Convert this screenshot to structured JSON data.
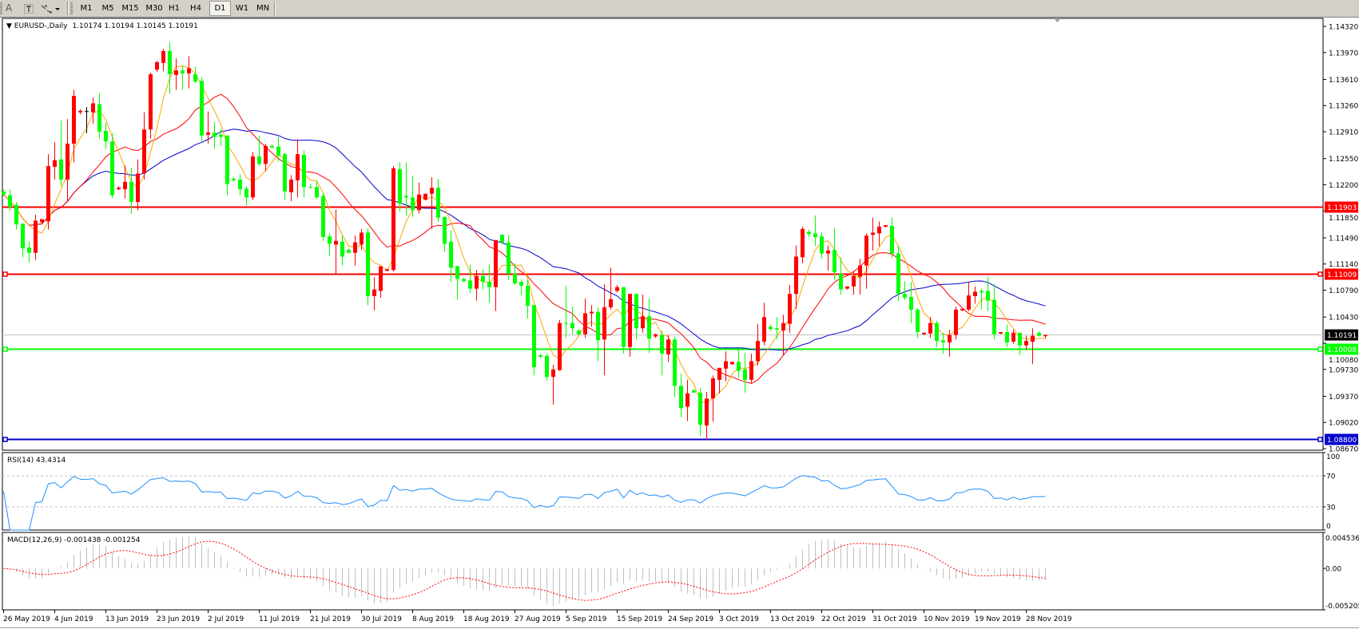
{
  "toolbar": {
    "tools": [
      {
        "label": "A",
        "icon": "text-label-icon"
      },
      {
        "label": "",
        "icon": "text-box-icon"
      },
      {
        "label": "",
        "icon": "arrows-icon"
      }
    ],
    "timeframes": [
      "M1",
      "M5",
      "M15",
      "M30",
      "H1",
      "H4",
      "D1",
      "W1",
      "MN"
    ],
    "active_timeframe": "D1"
  },
  "chart": {
    "symbol_label": "EURUSD-,Daily",
    "ohlc_text": "1.10174 1.10194 1.10145 1.10191",
    "price_ticks": [
      "1.14320",
      "1.13970",
      "1.13610",
      "1.13260",
      "1.12910",
      "1.12550",
      "1.12200",
      "1.11850",
      "1.11490",
      "1.11140",
      "1.10790",
      "1.10430",
      "1.10080",
      "1.09730",
      "1.09370",
      "1.09020",
      "1.08670"
    ],
    "hlines": [
      {
        "price": 1.11903,
        "label": "1.11903",
        "color": "#FF0000",
        "marker": false
      },
      {
        "price": 1.11009,
        "label": "1.11009",
        "color": "#FF0000",
        "marker": true
      },
      {
        "price": 1.10008,
        "label": "1.10008",
        "color": "#00FF00",
        "marker": true
      },
      {
        "price": 1.088,
        "label": "1.08800",
        "color": "#0000CD",
        "marker": true
      }
    ],
    "bid": {
      "price": 1.10191,
      "label": "1.10191",
      "line_color": "#C0C0C0",
      "tag_color": "#000000"
    }
  },
  "colors": {
    "bull_candle": "#FF0000",
    "bear_candle": "#00FF00",
    "doji": "#000000",
    "ma_fast": "#FFA500",
    "ma_mid": "#FF0000",
    "ma_slow": "#0000CD",
    "rsi_line": "#1E90FF",
    "macd_hist": "#C0C0C0",
    "macd_signal": "#FF0000",
    "level_line": "#C0C0C0"
  },
  "chart_data": {
    "type": "candlestick",
    "symbol": "EURUSD-",
    "timeframe": "Daily",
    "ylim": [
      1.0867,
      1.1432
    ],
    "x_labels": [
      "26 May 2019",
      "4 Jun 2019",
      "13 Jun 2019",
      "23 Jun 2019",
      "2 Jul 2019",
      "11 Jul 2019",
      "21 Jul 2019",
      "30 Jul 2019",
      "8 Aug 2019",
      "18 Aug 2019",
      "27 Aug 2019",
      "5 Sep 2019",
      "15 Sep 2019",
      "24 Sep 2019",
      "3 Oct 2019",
      "13 Oct 2019",
      "22 Oct 2019",
      "31 Oct 2019",
      "10 Nov 2019",
      "19 Nov 2019",
      "28 Nov 2019"
    ],
    "x_label_every_bars": 8,
    "ohlc_columns": [
      "open",
      "high",
      "low",
      "close"
    ],
    "candles": [
      [
        1.1211,
        1.1214,
        1.1205,
        1.1207
      ],
      [
        1.1206,
        1.1214,
        1.1185,
        1.119
      ],
      [
        1.1193,
        1.1197,
        1.116,
        1.1167
      ],
      [
        1.1168,
        1.1168,
        1.1123,
        1.1135
      ],
      [
        1.1136,
        1.1144,
        1.1116,
        1.1129
      ],
      [
        1.1129,
        1.118,
        1.1119,
        1.1172
      ],
      [
        1.117,
        1.1174,
        1.1168,
        1.1174
      ],
      [
        1.1171,
        1.1261,
        1.116,
        1.1245
      ],
      [
        1.1244,
        1.1277,
        1.1227,
        1.1253
      ],
      [
        1.1254,
        1.1306,
        1.1218,
        1.1227
      ],
      [
        1.1227,
        1.1308,
        1.1198,
        1.1275
      ],
      [
        1.1275,
        1.1347,
        1.125,
        1.1339
      ],
      [
        1.1317,
        1.1321,
        1.1314,
        1.1319
      ],
      [
        1.1318,
        1.1324,
        1.1289,
        1.1318
      ],
      [
        1.1317,
        1.1337,
        1.1302,
        1.1329
      ],
      [
        1.1328,
        1.1342,
        1.1282,
        1.1291
      ],
      [
        1.1292,
        1.1303,
        1.1268,
        1.1278
      ],
      [
        1.1278,
        1.1289,
        1.1202,
        1.1206
      ],
      [
        1.1214,
        1.1218,
        1.1213,
        1.1216
      ],
      [
        1.1214,
        1.1246,
        1.1202,
        1.1224
      ],
      [
        1.1224,
        1.1243,
        1.1181,
        1.1197
      ],
      [
        1.1197,
        1.1254,
        1.1186,
        1.1235
      ],
      [
        1.1235,
        1.1317,
        1.1227,
        1.1294
      ],
      [
        1.1294,
        1.137,
        1.1282,
        1.1368
      ],
      [
        1.1374,
        1.1386,
        1.1371,
        1.1384
      ],
      [
        1.1383,
        1.1402,
        1.1372,
        1.1399
      ],
      [
        1.1399,
        1.1411,
        1.1342,
        1.1368
      ],
      [
        1.1367,
        1.1389,
        1.1347,
        1.1373
      ],
      [
        1.1373,
        1.138,
        1.1347,
        1.1369
      ],
      [
        1.1369,
        1.1392,
        1.1349,
        1.1376
      ],
      [
        1.1368,
        1.1378,
        1.1356,
        1.1358
      ],
      [
        1.1359,
        1.1364,
        1.1278,
        1.1286
      ],
      [
        1.1287,
        1.1318,
        1.1275,
        1.129
      ],
      [
        1.129,
        1.1304,
        1.1268,
        1.1284
      ],
      [
        1.1287,
        1.1294,
        1.1272,
        1.1284
      ],
      [
        1.1286,
        1.1286,
        1.1206,
        1.1221
      ],
      [
        1.1228,
        1.123,
        1.1224,
        1.1226
      ],
      [
        1.1227,
        1.1234,
        1.1206,
        1.1214
      ],
      [
        1.1215,
        1.1218,
        1.1192,
        1.1203
      ],
      [
        1.1203,
        1.1264,
        1.12,
        1.1258
      ],
      [
        1.1258,
        1.1286,
        1.1245,
        1.1248
      ],
      [
        1.1248,
        1.1275,
        1.1238,
        1.1272
      ],
      [
        1.1272,
        1.1274,
        1.1269,
        1.127
      ],
      [
        1.1271,
        1.1284,
        1.1251,
        1.1259
      ],
      [
        1.1261,
        1.1263,
        1.12,
        1.1211
      ],
      [
        1.121,
        1.1233,
        1.1198,
        1.1227
      ],
      [
        1.1226,
        1.1281,
        1.1203,
        1.1261
      ],
      [
        1.126,
        1.1266,
        1.1203,
        1.1217
      ],
      [
        1.1217,
        1.1221,
        1.1215,
        1.1216
      ],
      [
        1.1217,
        1.1226,
        1.1202,
        1.1203
      ],
      [
        1.1205,
        1.1209,
        1.1145,
        1.115
      ],
      [
        1.1151,
        1.1155,
        1.1125,
        1.1141
      ],
      [
        1.114,
        1.1187,
        1.1101,
        1.1145
      ],
      [
        1.1144,
        1.1152,
        1.1112,
        1.1124
      ],
      [
        1.1133,
        1.1135,
        1.1128,
        1.1129
      ],
      [
        1.1129,
        1.1152,
        1.1112,
        1.1143
      ],
      [
        1.114,
        1.1161,
        1.1133,
        1.1156
      ],
      [
        1.1156,
        1.1162,
        1.1059,
        1.1071
      ],
      [
        1.1071,
        1.1096,
        1.1052,
        1.108
      ],
      [
        1.1078,
        1.1111,
        1.1069,
        1.1111
      ],
      [
        1.1105,
        1.1107,
        1.1104,
        1.1107
      ],
      [
        1.1106,
        1.1245,
        1.1104,
        1.1242
      ],
      [
        1.1241,
        1.125,
        1.1184,
        1.1195
      ],
      [
        1.1205,
        1.125,
        1.1179,
        1.1203
      ],
      [
        1.1203,
        1.1232,
        1.1177,
        1.1186
      ],
      [
        1.1186,
        1.1223,
        1.1182,
        1.1207
      ],
      [
        1.12,
        1.1208,
        1.1199,
        1.1208
      ],
      [
        1.1208,
        1.123,
        1.1161,
        1.1216
      ],
      [
        1.1216,
        1.1228,
        1.117,
        1.1176
      ],
      [
        1.1177,
        1.1177,
        1.113,
        1.1141
      ],
      [
        1.1144,
        1.1159,
        1.109,
        1.1109
      ],
      [
        1.1111,
        1.1112,
        1.1066,
        1.1094
      ],
      [
        1.1094,
        1.1096,
        1.1089,
        1.1091
      ],
      [
        1.1092,
        1.1113,
        1.1075,
        1.1081
      ],
      [
        1.1081,
        1.1106,
        1.1065,
        1.1098
      ],
      [
        1.1098,
        1.1107,
        1.108,
        1.109
      ],
      [
        1.109,
        1.1113,
        1.1062,
        1.1083
      ],
      [
        1.1083,
        1.1146,
        1.1051,
        1.1146
      ],
      [
        1.1153,
        1.1154,
        1.1141,
        1.1143
      ],
      [
        1.1143,
        1.1153,
        1.1093,
        1.1101
      ],
      [
        1.1101,
        1.1115,
        1.1086,
        1.1088
      ],
      [
        1.109,
        1.1093,
        1.1072,
        1.1085
      ],
      [
        1.1085,
        1.1093,
        1.1041,
        1.1058
      ],
      [
        1.1059,
        1.1059,
        1.0965,
        1.0976
      ],
      [
        1.0992,
        1.0994,
        1.0988,
        1.099
      ],
      [
        1.0991,
        1.0994,
        1.0958,
        1.0963
      ],
      [
        1.0963,
        1.0979,
        1.0926,
        1.0973
      ],
      [
        1.0972,
        1.1039,
        1.0971,
        1.1035
      ],
      [
        1.1035,
        1.1085,
        1.1015,
        1.1034
      ],
      [
        1.1035,
        1.1057,
        1.102,
        1.1028
      ],
      [
        1.1025,
        1.1027,
        1.1019,
        1.102
      ],
      [
        1.102,
        1.1068,
        1.1015,
        1.1048
      ],
      [
        1.1048,
        1.1059,
        1.103,
        1.105
      ],
      [
        1.105,
        1.1056,
        1.0984,
        1.1012
      ],
      [
        1.1013,
        1.1087,
        1.0965,
        1.1056
      ],
      [
        1.1056,
        1.1109,
        1.1053,
        1.1067
      ],
      [
        1.1078,
        1.1086,
        1.1076,
        1.1083
      ],
      [
        1.1083,
        1.1083,
        1.0994,
        1.1003
      ],
      [
        1.1003,
        1.1074,
        1.099,
        1.1074
      ],
      [
        1.1074,
        1.1074,
        1.1013,
        1.1028
      ],
      [
        1.1028,
        1.1073,
        1.1022,
        1.1044
      ],
      [
        1.1044,
        1.1068,
        1.0995,
        1.1014
      ],
      [
        1.1017,
        1.1021,
        1.1015,
        1.102
      ],
      [
        1.1019,
        1.1025,
        1.0965,
        1.0994
      ],
      [
        1.0993,
        1.1019,
        1.0983,
        1.1013
      ],
      [
        1.1013,
        1.1017,
        1.0936,
        1.0951
      ],
      [
        1.0951,
        1.0967,
        1.0909,
        1.0921
      ],
      [
        1.0923,
        1.0959,
        1.0904,
        1.0941
      ],
      [
        1.0945,
        1.0947,
        1.0942,
        1.0942
      ],
      [
        1.0942,
        1.0948,
        1.0884,
        1.0899
      ],
      [
        1.0898,
        1.0943,
        1.0878,
        1.0934
      ],
      [
        1.0934,
        1.0965,
        1.0903,
        1.0961
      ],
      [
        1.0959,
        1.0975,
        1.0941,
        1.0975
      ],
      [
        1.0974,
        1.0997,
        1.0957,
        1.0984
      ],
      [
        1.098,
        1.0983,
        1.0979,
        1.0983
      ],
      [
        1.0983,
        1.1,
        1.0962,
        1.0971
      ],
      [
        1.0973,
        1.0995,
        1.0942,
        1.0959
      ],
      [
        1.0959,
        1.0994,
        1.0955,
        1.0984
      ],
      [
        1.0984,
        1.1034,
        1.0978,
        1.1011
      ],
      [
        1.101,
        1.1062,
        1.1005,
        1.1043
      ],
      [
        1.103,
        1.1033,
        1.1024,
        1.1027
      ],
      [
        1.1028,
        1.1043,
        1.1013,
        1.1026
      ],
      [
        1.1025,
        1.1046,
        1.0992,
        1.1035
      ],
      [
        1.1034,
        1.1086,
        1.1022,
        1.1074
      ],
      [
        1.1074,
        1.1139,
        1.1054,
        1.1124
      ],
      [
        1.1123,
        1.1164,
        1.1115,
        1.1161
      ],
      [
        1.1157,
        1.116,
        1.115,
        1.1154
      ],
      [
        1.1155,
        1.1179,
        1.1138,
        1.115
      ],
      [
        1.1151,
        1.1156,
        1.1121,
        1.1128
      ],
      [
        1.1128,
        1.1139,
        1.1105,
        1.1132
      ],
      [
        1.1133,
        1.1162,
        1.1093,
        1.1103
      ],
      [
        1.1101,
        1.1123,
        1.1073,
        1.108
      ],
      [
        1.1081,
        1.1084,
        1.108,
        1.1084
      ],
      [
        1.1084,
        1.1104,
        1.1073,
        1.1098
      ],
      [
        1.1097,
        1.1121,
        1.1073,
        1.1112
      ],
      [
        1.1112,
        1.1155,
        1.1081,
        1.1152
      ],
      [
        1.1153,
        1.1176,
        1.1132,
        1.1156
      ],
      [
        1.1155,
        1.1171,
        1.1138,
        1.1164
      ],
      [
        1.1164,
        1.1166,
        1.1163,
        1.1166
      ],
      [
        1.1165,
        1.1176,
        1.1122,
        1.1128
      ],
      [
        1.1128,
        1.1139,
        1.1064,
        1.1074
      ],
      [
        1.1074,
        1.1091,
        1.1066,
        1.1069
      ],
      [
        1.107,
        1.109,
        1.1035,
        1.1053
      ],
      [
        1.1053,
        1.1055,
        1.1015,
        1.1023
      ],
      [
        1.102,
        1.1022,
        1.1019,
        1.1022
      ],
      [
        1.1021,
        1.1043,
        1.1015,
        1.1035
      ],
      [
        1.1035,
        1.1038,
        1.1003,
        1.1011
      ],
      [
        1.1012,
        1.1022,
        1.0994,
        1.1009
      ],
      [
        1.1009,
        1.1026,
        1.099,
        1.1019
      ],
      [
        1.1019,
        1.1057,
        1.1013,
        1.1053
      ],
      [
        1.1052,
        1.1054,
        1.1051,
        1.1054
      ],
      [
        1.1053,
        1.109,
        1.1051,
        1.1072
      ],
      [
        1.1071,
        1.1084,
        1.1061,
        1.1077
      ],
      [
        1.1078,
        1.1081,
        1.1053,
        1.1076
      ],
      [
        1.1078,
        1.1097,
        1.1051,
        1.1065
      ],
      [
        1.1066,
        1.1087,
        1.1013,
        1.102
      ],
      [
        1.1021,
        1.1023,
        1.102,
        1.1023
      ],
      [
        1.1023,
        1.1033,
        1.1003,
        1.1009
      ],
      [
        1.101,
        1.1026,
        1.1007,
        1.1022
      ],
      [
        1.1022,
        1.1022,
        1.0992,
        1.1005
      ],
      [
        1.1005,
        1.1018,
        1.0999,
        1.1011
      ],
      [
        1.101,
        1.1028,
        1.098,
        1.1018
      ],
      [
        1.1022,
        1.1024,
        1.1017,
        1.1018
      ],
      [
        1.10174,
        1.10194,
        1.10145,
        1.10191
      ]
    ]
  },
  "rsi": {
    "label": "RSI(14) 43.4314",
    "levels": [
      70,
      30
    ],
    "ylim": [
      0,
      100
    ],
    "ticks": [
      "100",
      "70",
      "30",
      "0"
    ]
  },
  "macd": {
    "label": "MACD(12,26,9) -0.001438 -0.001254",
    "ylim": [
      -0.005205,
      0.004536
    ],
    "ticks": [
      "0.004536",
      "0.00",
      "-0.005205"
    ]
  }
}
